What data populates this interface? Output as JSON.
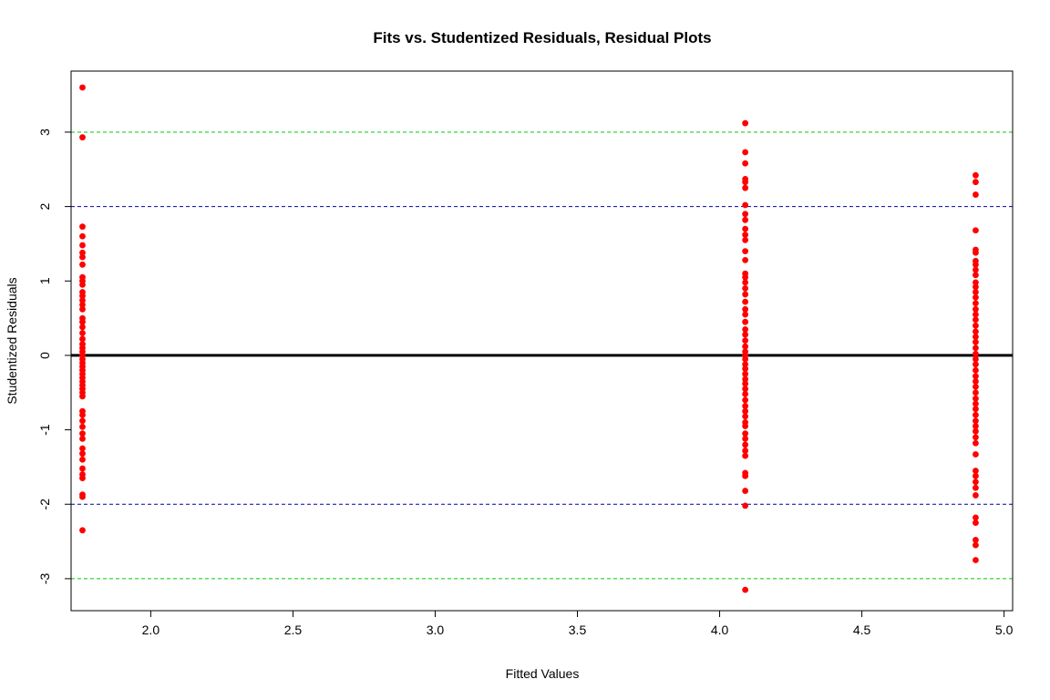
{
  "chart_data": {
    "type": "scatter",
    "title": "Fits vs. Studentized Residuals, Residual Plots",
    "xlabel": "Fitted Values",
    "ylabel": "Studentized Residuals",
    "xlim": [
      1.72,
      5.03
    ],
    "ylim": [
      -3.43,
      3.82
    ],
    "x_ticks": [
      2.0,
      2.5,
      3.0,
      3.5,
      4.0,
      4.5,
      5.0
    ],
    "x_tick_labels": [
      "2.0",
      "2.5",
      "3.0",
      "3.5",
      "4.0",
      "4.5",
      "5.0"
    ],
    "y_ticks": [
      -3,
      -2,
      -1,
      0,
      1,
      2,
      3
    ],
    "y_tick_labels": [
      "-3",
      "-2",
      "-1",
      "0",
      "1",
      "2",
      "3"
    ],
    "grid": false,
    "point_color": "#ff0000",
    "reference_lines": [
      {
        "y": 3,
        "color": "#00cc00",
        "style": "dashed"
      },
      {
        "y": 2,
        "color": "#0000aa",
        "style": "dashed"
      },
      {
        "y": 0,
        "color": "#000000",
        "style": "solid"
      },
      {
        "y": -2,
        "color": "#0000aa",
        "style": "dashed"
      },
      {
        "y": -3,
        "color": "#00cc00",
        "style": "dashed"
      }
    ],
    "series": [
      {
        "x": 1.76,
        "y": [
          3.6,
          2.93,
          1.73,
          1.6,
          1.48,
          1.38,
          1.32,
          1.22,
          1.05,
          1.0,
          0.95,
          0.85,
          0.8,
          0.74,
          0.68,
          0.62,
          0.5,
          0.45,
          0.38,
          0.3,
          0.22,
          0.15,
          0.1,
          0.05,
          0.0,
          -0.05,
          -0.1,
          -0.15,
          -0.2,
          -0.25,
          -0.3,
          -0.35,
          -0.4,
          -0.45,
          -0.5,
          -0.55,
          -0.75,
          -0.8,
          -0.88,
          -0.96,
          -1.05,
          -1.12,
          -1.25,
          -1.32,
          -1.4,
          -1.52,
          -1.6,
          -1.65,
          -1.87,
          -1.9,
          -2.35
        ]
      },
      {
        "x": 4.09,
        "y": [
          3.12,
          2.73,
          2.58,
          2.37,
          2.33,
          2.25,
          2.02,
          1.9,
          1.82,
          1.7,
          1.62,
          1.55,
          1.4,
          1.28,
          1.1,
          1.05,
          0.98,
          0.9,
          0.82,
          0.72,
          0.62,
          0.55,
          0.45,
          0.35,
          0.28,
          0.2,
          0.12,
          0.05,
          0.0,
          -0.05,
          -0.12,
          -0.18,
          -0.25,
          -0.32,
          -0.38,
          -0.45,
          -0.52,
          -0.6,
          -0.68,
          -0.75,
          -0.82,
          -0.9,
          -0.95,
          -1.05,
          -1.12,
          -1.2,
          -1.28,
          -1.35,
          -1.58,
          -1.62,
          -1.82,
          -2.02,
          -3.15
        ]
      },
      {
        "x": 4.9,
        "y": [
          2.42,
          2.33,
          2.16,
          1.68,
          1.42,
          1.38,
          1.27,
          1.22,
          1.15,
          1.08,
          0.98,
          0.92,
          0.85,
          0.78,
          0.7,
          0.62,
          0.55,
          0.48,
          0.4,
          0.32,
          0.25,
          0.18,
          0.1,
          0.02,
          -0.05,
          -0.12,
          -0.2,
          -0.28,
          -0.35,
          -0.42,
          -0.5,
          -0.58,
          -0.65,
          -0.72,
          -0.8,
          -0.88,
          -0.95,
          -1.02,
          -1.1,
          -1.18,
          -1.33,
          -1.55,
          -1.62,
          -1.7,
          -1.78,
          -1.88,
          -2.18,
          -2.25,
          -2.48,
          -2.55,
          -2.75
        ]
      }
    ]
  }
}
